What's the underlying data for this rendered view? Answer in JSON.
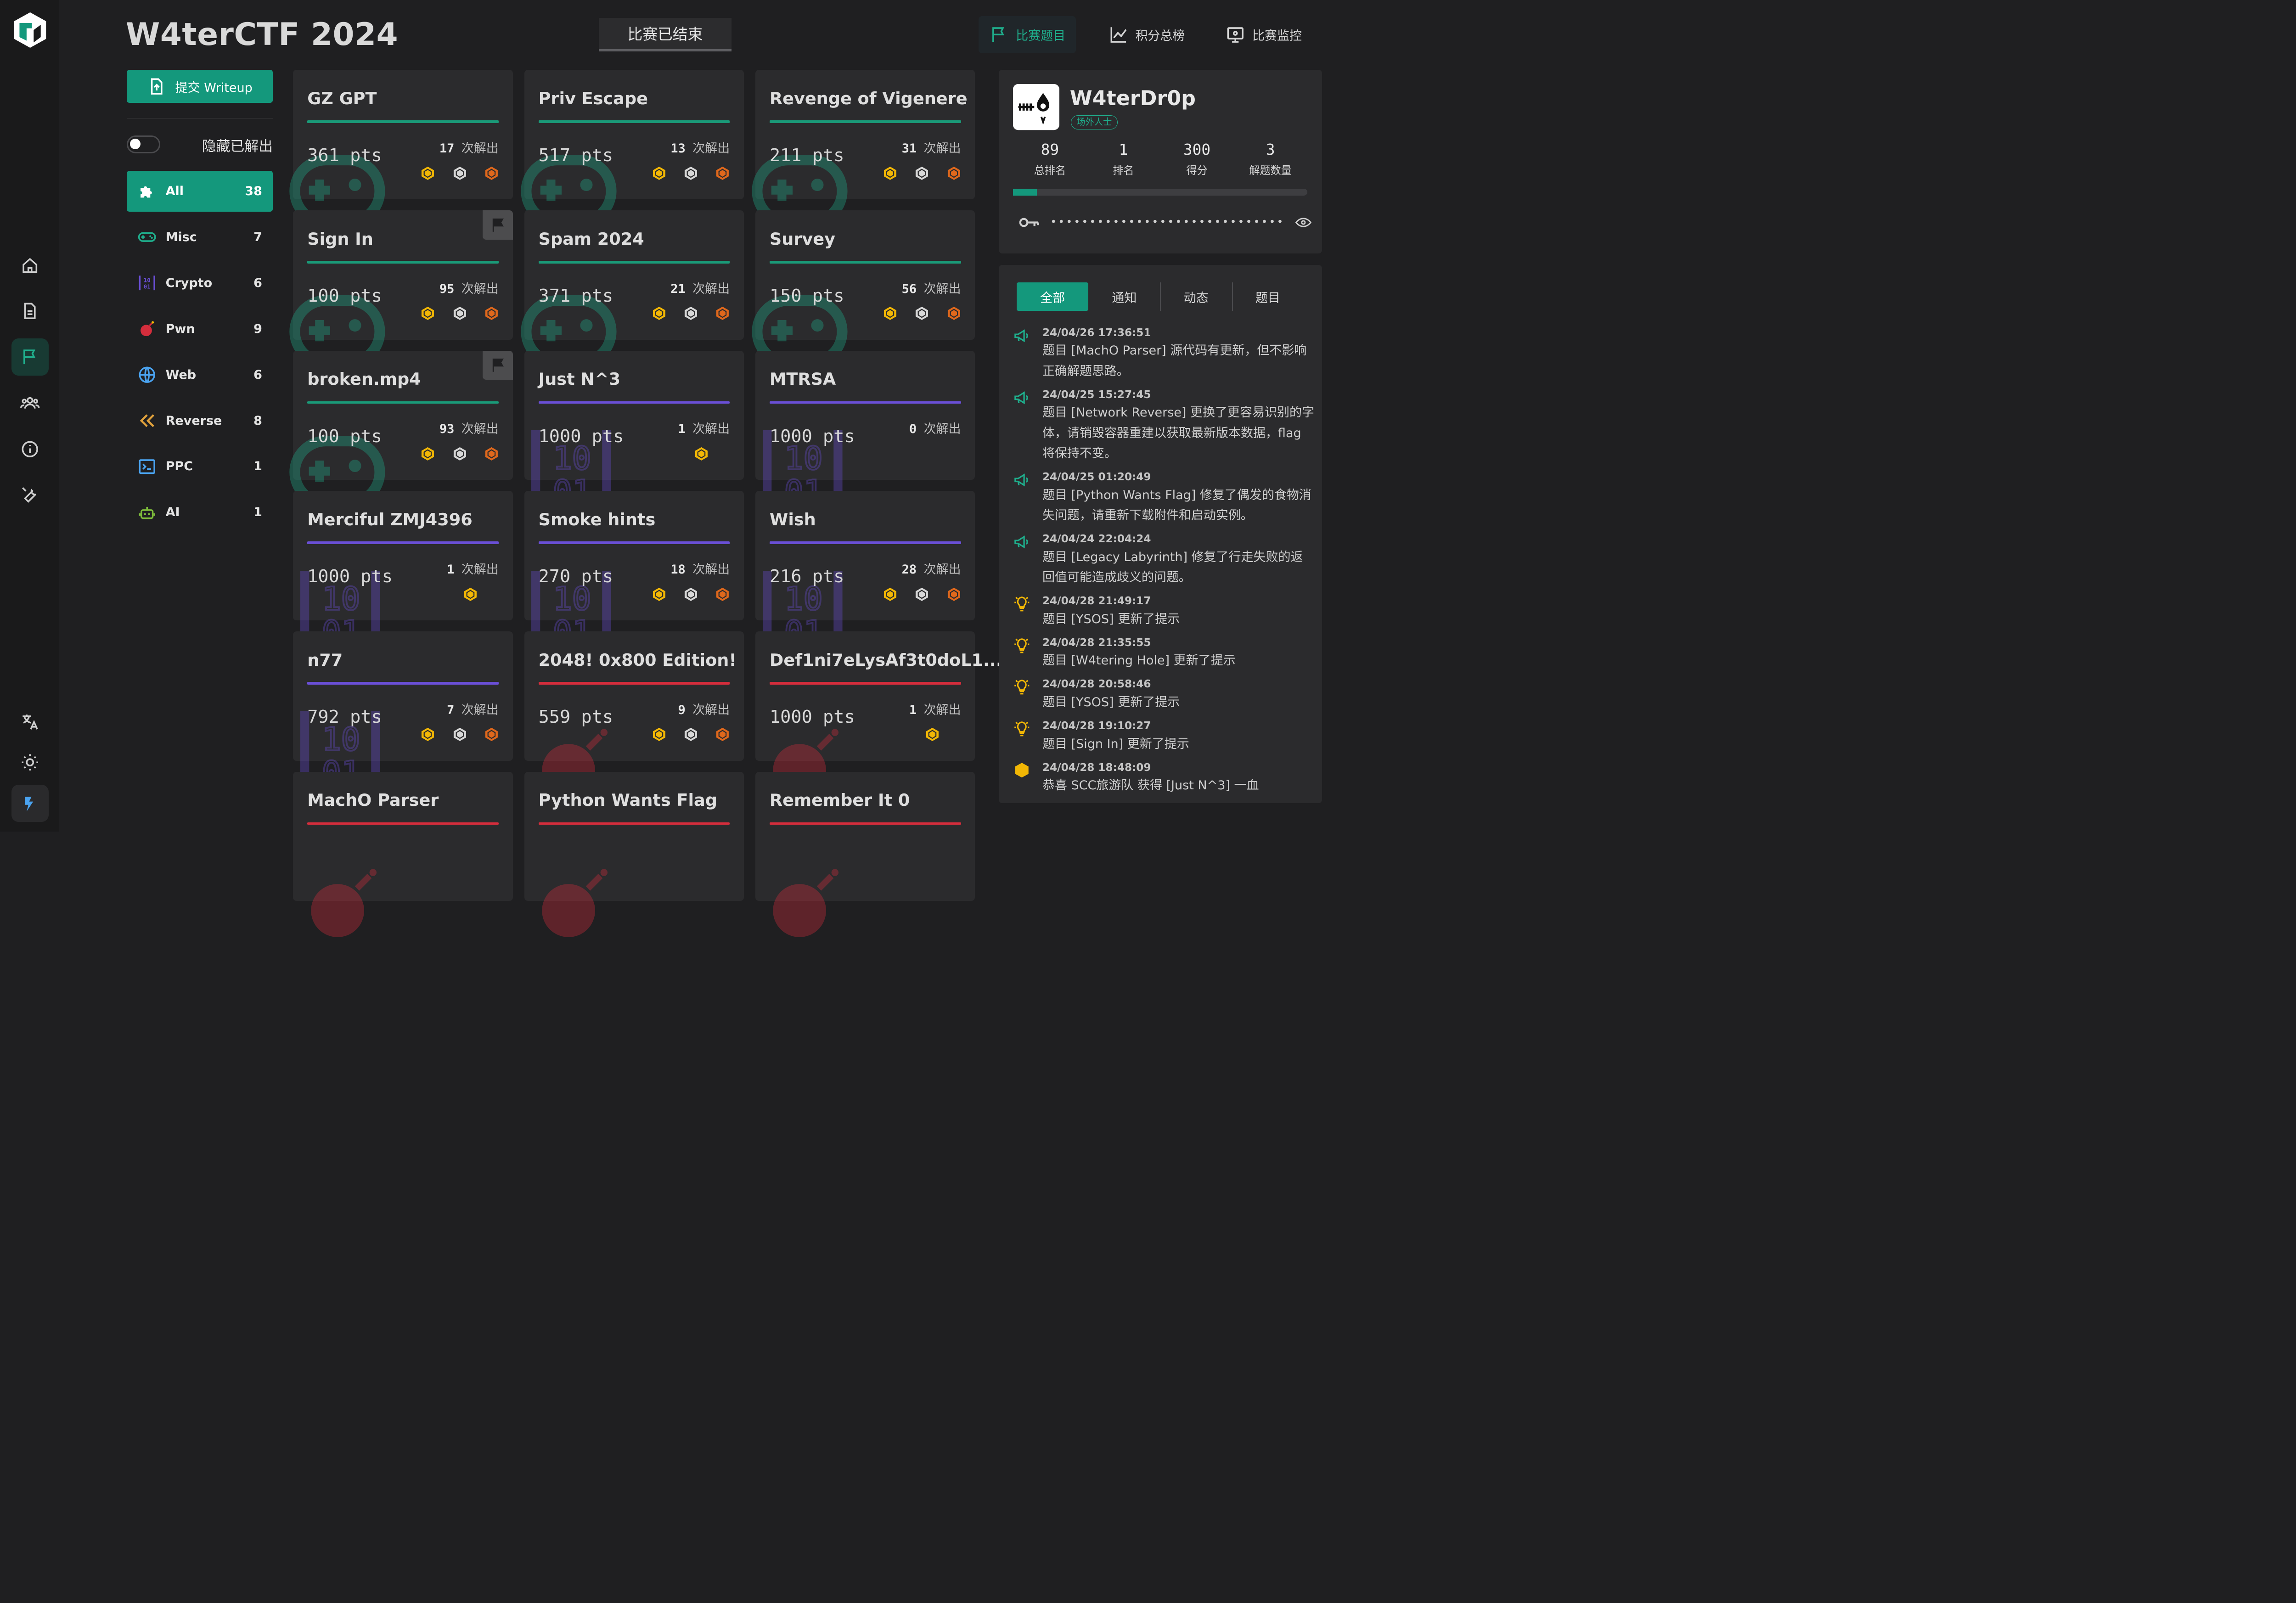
{
  "header": {
    "title": "W4terCTF 2024",
    "status": "比赛已结束"
  },
  "topnav": [
    {
      "label": "比赛题目",
      "icon": "flag-icon",
      "active": true
    },
    {
      "label": "积分总榜",
      "icon": "chart-line-icon",
      "active": false
    },
    {
      "label": "比赛监控",
      "icon": "monitor-eye-icon",
      "active": false
    }
  ],
  "sidebar": {
    "writeup_label": "提交 Writeup",
    "hide_solved_label": "隐藏已解出",
    "categories": [
      {
        "name": "All",
        "count": "38",
        "icon": "puzzle-icon",
        "active": true
      },
      {
        "name": "Misc",
        "count": "7",
        "icon": "gamepad-icon"
      },
      {
        "name": "Crypto",
        "count": "6",
        "icon": "binary-icon"
      },
      {
        "name": "Pwn",
        "count": "9",
        "icon": "bomb-icon"
      },
      {
        "name": "Web",
        "count": "6",
        "icon": "globe-icon"
      },
      {
        "name": "Reverse",
        "count": "8",
        "icon": "rewind-icon"
      },
      {
        "name": "PPC",
        "count": "1",
        "icon": "terminal-icon"
      },
      {
        "name": "AI",
        "count": "1",
        "icon": "robot-icon"
      }
    ]
  },
  "solves_suffix": "次解出",
  "challenges": [
    {
      "name": "GZ GPT",
      "points": "361 pts",
      "solves": "17",
      "category": "Misc",
      "bloods": 3
    },
    {
      "name": "Priv Escape",
      "points": "517 pts",
      "solves": "13",
      "category": "Misc",
      "bloods": 3
    },
    {
      "name": "Revenge of Vigenere",
      "points": "211 pts",
      "solves": "31",
      "category": "Misc",
      "bloods": 3
    },
    {
      "name": "Sign In",
      "points": "100 pts",
      "solves": "95",
      "category": "Misc",
      "bloods": 3,
      "flagged": true
    },
    {
      "name": "Spam 2024",
      "points": "371 pts",
      "solves": "21",
      "category": "Misc",
      "bloods": 3
    },
    {
      "name": "Survey",
      "points": "150 pts",
      "solves": "56",
      "category": "Misc",
      "bloods": 3
    },
    {
      "name": "broken.mp4",
      "points": "100 pts",
      "solves": "93",
      "category": "Misc",
      "bloods": 3,
      "flagged": true
    },
    {
      "name": "Just N^3",
      "points": "1000 pts",
      "solves": "1",
      "category": "Crypto",
      "bloods": 1
    },
    {
      "name": "MTRSA",
      "points": "1000 pts",
      "solves": "0",
      "category": "Crypto",
      "bloods": 0
    },
    {
      "name": "Merciful ZMJ4396",
      "points": "1000 pts",
      "solves": "1",
      "category": "Crypto",
      "bloods": 1
    },
    {
      "name": "Smoke hints",
      "points": "270 pts",
      "solves": "18",
      "category": "Crypto",
      "bloods": 3
    },
    {
      "name": "Wish",
      "points": "216 pts",
      "solves": "28",
      "category": "Crypto",
      "bloods": 3
    },
    {
      "name": "n77",
      "points": "792 pts",
      "solves": "7",
      "category": "Crypto",
      "bloods": 3
    },
    {
      "name": "2048! 0x800 Edition!",
      "points": "559 pts",
      "solves": "9",
      "category": "Pwn",
      "bloods": 3
    },
    {
      "name": "Def1ni7eLysAf3t0doL1...",
      "points": "1000 pts",
      "solves": "1",
      "category": "Pwn",
      "bloods": 1
    },
    {
      "name": "MachO Parser",
      "points": "",
      "solves": "",
      "category": "Pwn",
      "bloods": 0
    },
    {
      "name": "Python Wants Flag",
      "points": "",
      "solves": "",
      "category": "Pwn",
      "bloods": 0
    },
    {
      "name": "Remember It 0",
      "points": "",
      "solves": "",
      "category": "Pwn",
      "bloods": 0
    }
  ],
  "profile": {
    "name": "W4terDr0p",
    "tag": "场外人士",
    "stats": [
      {
        "value": "89",
        "label": "总排名"
      },
      {
        "value": "1",
        "label": "排名"
      },
      {
        "value": "300",
        "label": "得分"
      },
      {
        "value": "3",
        "label": "解题数量"
      }
    ],
    "progress": 0.08,
    "token_mask": "••••••••••••••••••••••••••••••"
  },
  "notices": {
    "tabs": [
      {
        "label": "全部",
        "active": true
      },
      {
        "label": "通知"
      },
      {
        "label": "动态"
      },
      {
        "label": "题目"
      }
    ],
    "items": [
      {
        "type": "notice",
        "time": "24/04/26 17:36:51",
        "text": "题目 [MachO Parser] 源代码有更新，但不影响正确解题思路。"
      },
      {
        "type": "notice",
        "time": "24/04/25 15:27:45",
        "text": "题目 [Network Reverse] 更换了更容易识别的字体，请销毁容器重建以获取最新版本数据，flag 将保持不变。"
      },
      {
        "type": "notice",
        "time": "24/04/25 01:20:49",
        "text": "题目 [Python Wants Flag] 修复了偶发的食物消失问题，请重新下载附件和启动实例。"
      },
      {
        "type": "notice",
        "time": "24/04/24 22:04:24",
        "text": "题目 [Legacy Labyrinth] 修复了行走失败的返回值可能造成歧义的问题。"
      },
      {
        "type": "hint",
        "time": "24/04/28 21:49:17",
        "text": "题目 [YSOS] 更新了提示"
      },
      {
        "type": "hint",
        "time": "24/04/28 21:35:55",
        "text": "题目 [W4tering Hole] 更新了提示"
      },
      {
        "type": "hint",
        "time": "24/04/28 20:58:46",
        "text": "题目 [YSOS] 更新了提示"
      },
      {
        "type": "hint",
        "time": "24/04/28 19:10:27",
        "text": "题目 [Sign In] 更新了提示"
      },
      {
        "type": "blood",
        "time": "24/04/28 18:48:09",
        "text": "恭喜 SCC旅游队 获得 [Just N^3] 一血"
      }
    ]
  },
  "colors": {
    "accent": "#14987c",
    "misc": "#1a9a78",
    "crypto": "#6a4fd6",
    "pwn": "#d42d3c",
    "gold": "#f2b705",
    "silver": "#d8d8d8",
    "bronze": "#e0681c"
  }
}
